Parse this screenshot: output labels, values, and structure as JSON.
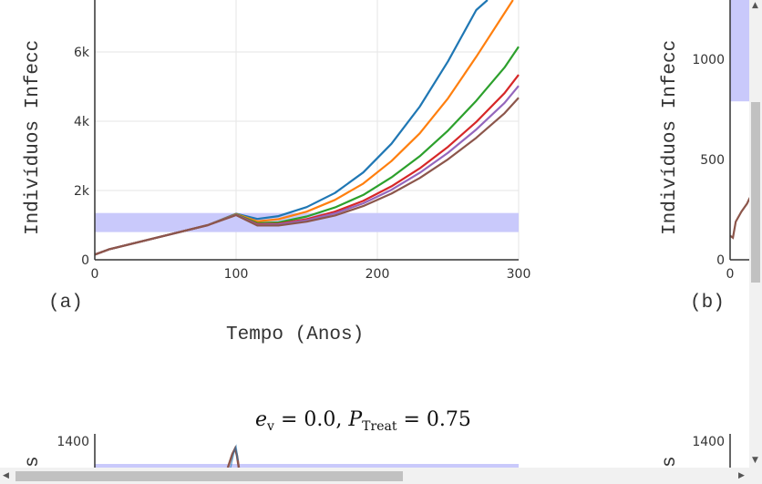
{
  "chart_data": [
    {
      "type": "line",
      "panel_label": "(a)",
      "ylabel": "Indivíduos Infecc",
      "xlabel": "Tempo (Anos)",
      "xlim": [
        0,
        300
      ],
      "ylim": [
        0,
        7500
      ],
      "x_ticks": [
        "0",
        "100",
        "200",
        "300"
      ],
      "y_ticks": [
        "0",
        "2k",
        "4k",
        "6k"
      ],
      "band": [
        800,
        1350
      ],
      "band_color": "#c9c9fb",
      "series": [
        {
          "color": "#1f77b4",
          "x": [
            0,
            10,
            40,
            80,
            100,
            115,
            130,
            150,
            170,
            190,
            210,
            230,
            250,
            270,
            278
          ],
          "y": [
            150,
            300,
            600,
            1000,
            1330,
            1180,
            1260,
            1520,
            1930,
            2520,
            3350,
            4420,
            5730,
            7210,
            7500
          ]
        },
        {
          "color": "#ff7f0e",
          "x": [
            0,
            10,
            40,
            80,
            100,
            115,
            130,
            150,
            170,
            190,
            210,
            230,
            250,
            270,
            290,
            296
          ],
          "y": [
            150,
            300,
            600,
            1000,
            1320,
            1110,
            1170,
            1390,
            1730,
            2200,
            2850,
            3650,
            4660,
            5860,
            7120,
            7500
          ]
        },
        {
          "color": "#2ca02c",
          "x": [
            0,
            10,
            40,
            80,
            100,
            115,
            130,
            150,
            170,
            190,
            210,
            230,
            250,
            270,
            290,
            300
          ],
          "y": [
            150,
            300,
            600,
            1000,
            1310,
            1060,
            1080,
            1250,
            1510,
            1870,
            2380,
            2990,
            3730,
            4590,
            5550,
            6150
          ]
        },
        {
          "color": "#d62728",
          "x": [
            0,
            10,
            40,
            80,
            100,
            115,
            130,
            150,
            170,
            190,
            210,
            230,
            250,
            270,
            290,
            300
          ],
          "y": [
            150,
            300,
            600,
            1000,
            1300,
            1030,
            1040,
            1170,
            1390,
            1700,
            2120,
            2640,
            3260,
            3980,
            4810,
            5340
          ]
        },
        {
          "color": "#9467bd",
          "x": [
            0,
            10,
            40,
            80,
            100,
            115,
            130,
            150,
            170,
            190,
            210,
            230,
            250,
            270,
            290,
            300
          ],
          "y": [
            150,
            300,
            600,
            1000,
            1300,
            1010,
            1020,
            1140,
            1340,
            1630,
            2020,
            2510,
            3090,
            3760,
            4530,
            5020
          ]
        },
        {
          "color": "#8c564b",
          "x": [
            0,
            10,
            40,
            80,
            100,
            115,
            130,
            150,
            170,
            190,
            210,
            230,
            250,
            270,
            290,
            300
          ],
          "y": [
            150,
            300,
            600,
            1000,
            1290,
            990,
            990,
            1100,
            1280,
            1550,
            1910,
            2360,
            2900,
            3520,
            4230,
            4680
          ]
        }
      ]
    },
    {
      "type": "line",
      "panel_label": "(b)",
      "ylabel": "Indivíduos Infecc",
      "xlim": [
        0,
        300
      ],
      "ylim": [
        0,
        1300
      ],
      "x_ticks": [
        "0"
      ],
      "y_ticks": [
        "0",
        "500",
        "1000"
      ],
      "band": [
        790,
        1300
      ],
      "band_color": "#c9c9fb",
      "series": [
        {
          "color": "#8c564b",
          "x": [
            0,
            2,
            4,
            8,
            12,
            14
          ],
          "y": [
            120,
            110,
            190,
            240,
            280,
            310
          ]
        }
      ]
    },
    {
      "type": "line",
      "title": "e_v = 0.0, P_Treat = 0.75",
      "ylabel": "s",
      "y_ticks": [
        "1400"
      ],
      "band_color": "#c9c9fb"
    },
    {
      "type": "line",
      "ylabel": "s",
      "y_ticks": [
        "1400"
      ]
    }
  ]
}
